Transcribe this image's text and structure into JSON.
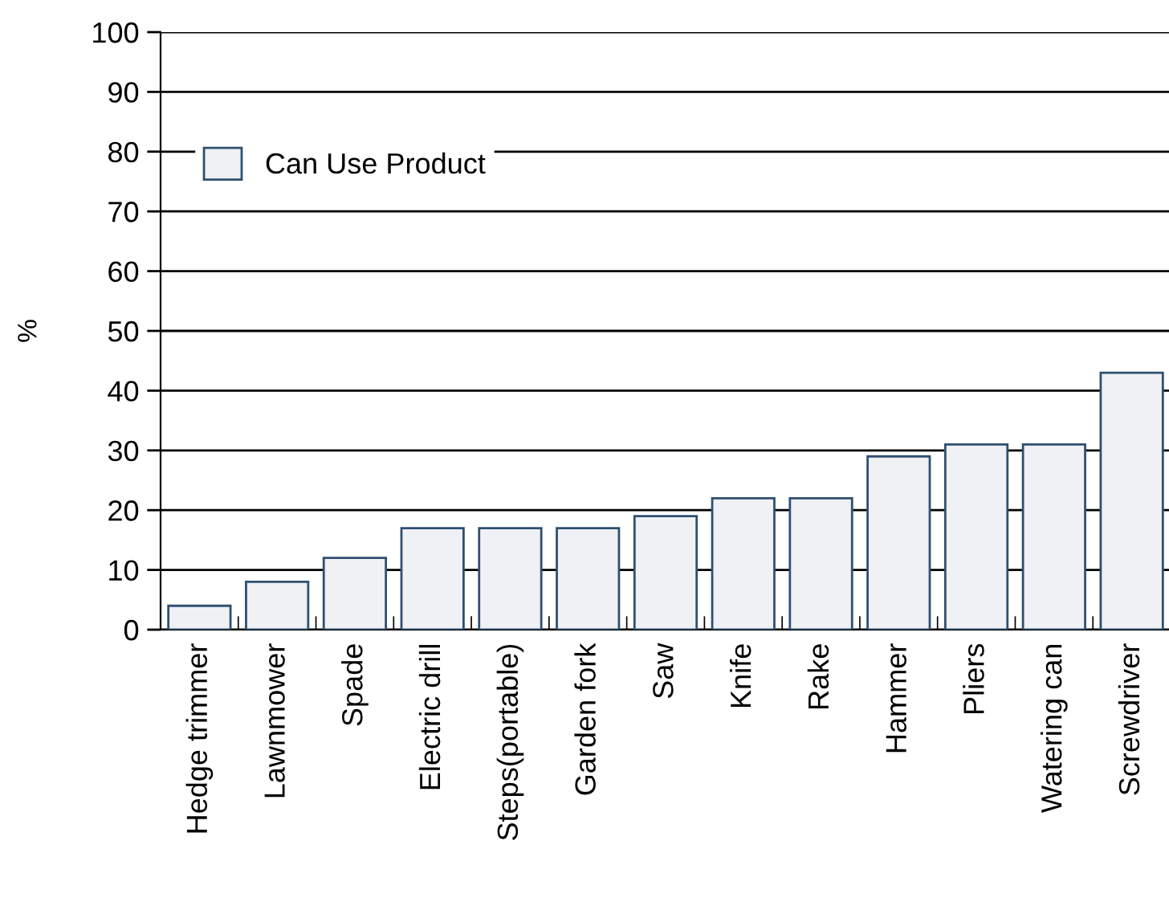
{
  "chart_data": {
    "type": "bar",
    "ylabel": "%",
    "categories": [
      "Hedge trimmer",
      "Lawnmower",
      "Spade",
      "Electric drill",
      "Steps(portable)",
      "Garden fork",
      "Saw",
      "Knife",
      "Rake",
      "Hammer",
      "Pliers",
      "Watering can",
      "Screwdriver"
    ],
    "series": [
      {
        "name": "Can Use Product",
        "color": "#eff1f5",
        "values": [
          4,
          8,
          12,
          17,
          17,
          17,
          19,
          22,
          22,
          29,
          31,
          31,
          43
        ]
      }
    ],
    "ylim": [
      0,
      100
    ],
    "yticks": [
      0,
      10,
      20,
      30,
      40,
      50,
      60,
      70,
      80,
      90,
      100
    ],
    "grid": "y",
    "legend": "top left"
  }
}
